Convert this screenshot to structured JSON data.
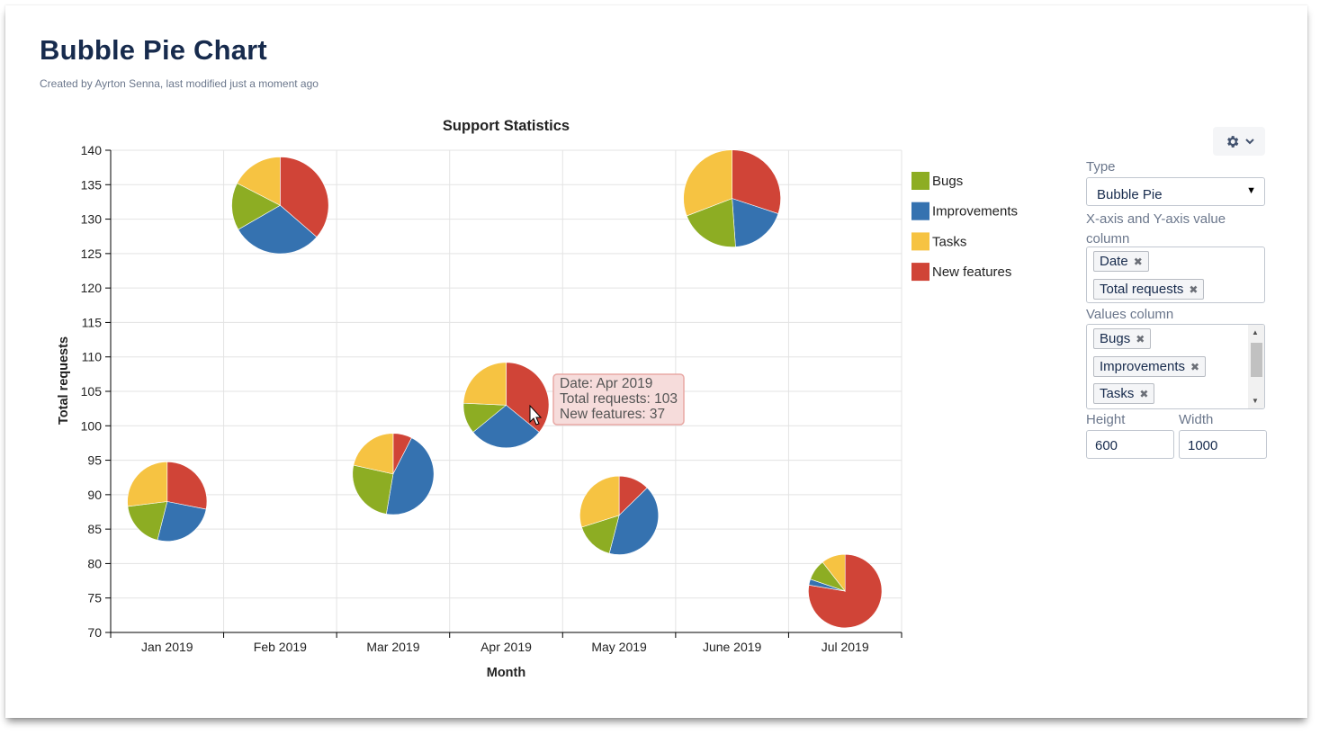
{
  "page": {
    "title": "Bubble Pie Chart",
    "byline": "Created by Ayrton Senna, last modified just a moment ago"
  },
  "chart_data": {
    "type": "bubble-pie",
    "title": "Support Statistics",
    "xlabel": "Month",
    "ylabel": "Total requests",
    "ylim": [
      70,
      140
    ],
    "yticks": [
      70,
      75,
      80,
      85,
      90,
      95,
      100,
      105,
      110,
      115,
      120,
      125,
      130,
      135,
      140
    ],
    "categories": [
      "Jan 2019",
      "Feb 2019",
      "Mar 2019",
      "Apr 2019",
      "May 2019",
      "June 2019",
      "Jul 2019"
    ],
    "grid": true,
    "legend_position": "right",
    "series": [
      {
        "name": "Bugs",
        "color": "#8dad23"
      },
      {
        "name": "Improvements",
        "color": "#3572b0"
      },
      {
        "name": "Tasks",
        "color": "#f6c342"
      },
      {
        "name": "New features",
        "color": "#d04437"
      }
    ],
    "points": [
      {
        "x": "Jan 2019",
        "y": 89,
        "slices": {
          "Bugs": 17,
          "Improvements": 23,
          "Tasks": 24,
          "New features": 25
        }
      },
      {
        "x": "Feb 2019",
        "y": 132,
        "slices": {
          "Bugs": 21,
          "Improvements": 40,
          "Tasks": 23,
          "New features": 48
        }
      },
      {
        "x": "Mar 2019",
        "y": 93,
        "slices": {
          "Bugs": 24,
          "Improvements": 42,
          "Tasks": 20,
          "New features": 7
        }
      },
      {
        "x": "Apr 2019",
        "y": 103,
        "slices": {
          "Bugs": 12,
          "Improvements": 29,
          "Tasks": 25,
          "New features": 37
        }
      },
      {
        "x": "May 2019",
        "y": 87,
        "slices": {
          "Bugs": 14,
          "Improvements": 36,
          "Tasks": 26,
          "New features": 11
        }
      },
      {
        "x": "June 2019",
        "y": 133,
        "slices": {
          "Bugs": 27,
          "Improvements": 25,
          "Tasks": 41,
          "New features": 40
        }
      },
      {
        "x": "Jul 2019",
        "y": 76,
        "slices": {
          "Bugs": 7,
          "Improvements": 2,
          "Tasks": 8,
          "New features": 59
        }
      }
    ],
    "tooltip": {
      "point_index": 3,
      "lines": [
        "Date: Apr 2019",
        "Total requests: 103",
        "New features: 37"
      ]
    }
  },
  "settings": {
    "gear_icon": "gear-icon",
    "type_label": "Type",
    "type_value": "Bubble Pie",
    "xy_label": "X-axis and Y-axis value column",
    "xy_chips": [
      "Date",
      "Total requests"
    ],
    "values_label": "Values column",
    "values_chips": [
      "Bugs",
      "Improvements",
      "Tasks"
    ],
    "height_label": "Height",
    "height_value": "600",
    "width_label": "Width",
    "width_value": "1000",
    "remove_glyph": "✖"
  }
}
